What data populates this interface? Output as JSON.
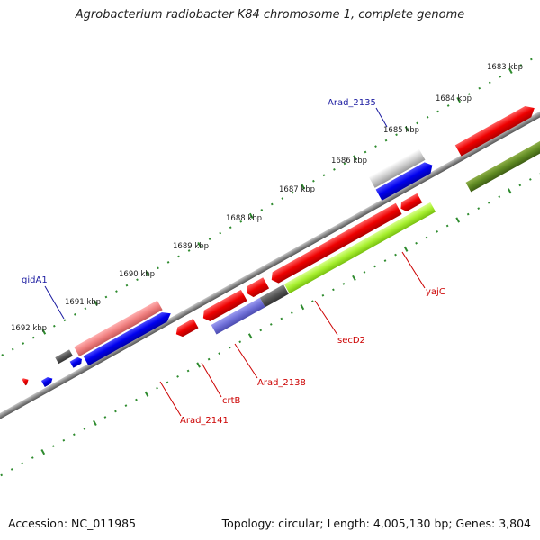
{
  "title": "Agrobacterium radiobacter K84 chromosome 1, complete genome",
  "footer": {
    "accession": "Accession: NC_011985",
    "summary": "Topology: circular; Length: 4,005,130 bp; Genes: 3,804"
  },
  "colors": {
    "backbone": "#8a8a8a",
    "ticks": "#2e8b2e",
    "blue_label": "#1a1aa0",
    "red_label": "#cc0000"
  },
  "kbp_labels": [
    "1683 kbp",
    "1684 kbp",
    "1685 kbp",
    "1686 kbp",
    "1687 kbp",
    "1688 kbp",
    "1689 kbp",
    "1690 kbp",
    "1691 kbp",
    "1692 kbp"
  ],
  "gene_labels": [
    {
      "text": "Arad_2135",
      "color": "#1a1aa0"
    },
    {
      "text": "gidA1",
      "color": "#1a1aa0"
    },
    {
      "text": "yajC",
      "color": "#cc0000"
    },
    {
      "text": "secD2",
      "color": "#cc0000"
    },
    {
      "text": "Arad_2138",
      "color": "#cc0000"
    },
    {
      "text": "crtB",
      "color": "#cc0000"
    },
    {
      "text": "Arad_2141",
      "color": "#cc0000"
    }
  ]
}
